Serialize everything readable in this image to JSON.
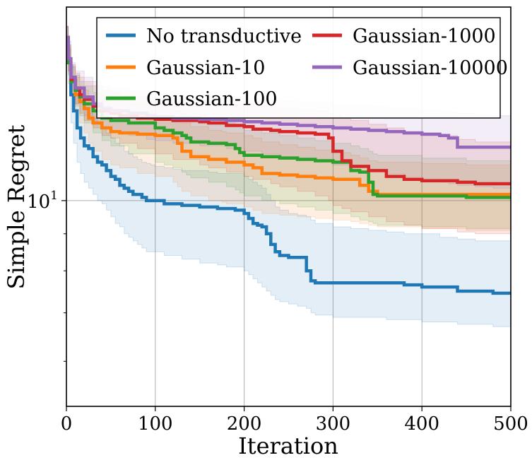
{
  "chart_data": {
    "type": "line",
    "title": "",
    "xlabel": "Iteration",
    "ylabel": "Simple Regret",
    "xlim": [
      0,
      500
    ],
    "ylim": [
      5.2,
      18.5
    ],
    "yscale": "log",
    "grid": true,
    "legend_position": "top-right",
    "legend_columns": 2,
    "xticks": [
      {
        "value": 0,
        "label": "0"
      },
      {
        "value": 100,
        "label": "100"
      },
      {
        "value": 200,
        "label": "200"
      },
      {
        "value": 300,
        "label": "300"
      },
      {
        "value": 400,
        "label": "400"
      },
      {
        "value": 500,
        "label": "500"
      }
    ],
    "ytick_major": [
      {
        "value": 10,
        "base": "10",
        "exp": "1"
      }
    ],
    "ytick_minor": [
      6,
      7,
      8,
      9
    ],
    "series": [
      {
        "name": "No transductive",
        "color": "#1f77b4",
        "x": [
          0,
          2,
          5,
          8,
          12,
          16,
          20,
          25,
          30,
          35,
          40,
          45,
          50,
          55,
          60,
          65,
          70,
          75,
          80,
          85,
          90,
          95,
          100,
          110,
          120,
          130,
          140,
          150,
          160,
          170,
          180,
          190,
          200,
          205,
          210,
          215,
          220,
          225,
          230,
          235,
          240,
          250,
          260,
          270,
          275,
          280,
          300,
          320,
          340,
          360,
          380,
          400,
          420,
          440,
          460,
          480,
          500
        ],
        "y": [
          16.8,
          15.5,
          14.0,
          13.3,
          12.6,
          12.2,
          11.9,
          11.8,
          11.5,
          11.3,
          11.2,
          11.0,
          10.8,
          10.7,
          10.5,
          10.4,
          10.3,
          10.2,
          10.2,
          10.1,
          10.0,
          10.0,
          10.0,
          9.9,
          9.9,
          9.85,
          9.85,
          9.8,
          9.8,
          9.75,
          9.75,
          9.7,
          9.6,
          9.45,
          9.3,
          9.25,
          9.2,
          9.0,
          8.7,
          8.5,
          8.4,
          8.35,
          8.35,
          8.0,
          7.75,
          7.7,
          7.7,
          7.7,
          7.7,
          7.7,
          7.65,
          7.6,
          7.6,
          7.5,
          7.5,
          7.45,
          7.45
        ],
        "band_lower": [
          16.2,
          14.5,
          12.8,
          12.0,
          11.3,
          10.9,
          10.6,
          10.4,
          10.2,
          10.0,
          9.9,
          9.7,
          9.5,
          9.3,
          9.2,
          9.0,
          8.9,
          8.8,
          8.7,
          8.6,
          8.5,
          8.5,
          8.5,
          8.4,
          8.4,
          8.3,
          8.3,
          8.2,
          8.2,
          8.15,
          8.1,
          8.1,
          8.0,
          7.9,
          7.8,
          7.7,
          7.6,
          7.5,
          7.4,
          7.3,
          7.25,
          7.2,
          7.15,
          7.1,
          7.0,
          6.95,
          6.9,
          6.9,
          6.9,
          6.85,
          6.85,
          6.8,
          6.8,
          6.75,
          6.75,
          6.7,
          6.7
        ],
        "band_upper": [
          17.4,
          16.6,
          15.4,
          14.7,
          14.0,
          13.7,
          13.4,
          13.2,
          13.0,
          12.8,
          12.6,
          12.4,
          12.2,
          12.0,
          11.9,
          11.7,
          11.6,
          11.5,
          11.4,
          11.3,
          11.25,
          11.2,
          11.15,
          11.1,
          11.05,
          11.0,
          11.0,
          11.0,
          10.95,
          10.9,
          10.9,
          10.9,
          10.8,
          10.7,
          10.6,
          10.5,
          10.4,
          10.2,
          10.0,
          9.8,
          9.7,
          9.6,
          9.55,
          9.5,
          9.4,
          9.3,
          9.2,
          9.15,
          9.1,
          9.05,
          9.0,
          9.0,
          8.9,
          8.85,
          8.8,
          8.8,
          8.75
        ]
      },
      {
        "name": "Gaussian-10",
        "color": "#ff7f0e",
        "x": [
          0,
          2,
          5,
          10,
          15,
          20,
          25,
          30,
          40,
          50,
          60,
          80,
          100,
          120,
          125,
          130,
          140,
          160,
          175,
          180,
          200,
          210,
          220,
          240,
          260,
          280,
          300,
          320,
          330,
          340,
          350,
          400,
          450,
          500
        ],
        "y": [
          16.8,
          15.6,
          14.6,
          14.0,
          13.7,
          13.4,
          13.0,
          12.8,
          12.6,
          12.45,
          12.4,
          12.35,
          12.3,
          12.2,
          12.0,
          11.7,
          11.5,
          11.4,
          11.4,
          11.3,
          11.2,
          11.1,
          10.9,
          10.85,
          10.8,
          10.75,
          10.7,
          10.7,
          10.5,
          10.3,
          10.2,
          10.2,
          10.2,
          10.2
        ],
        "band_lower": [
          16.2,
          15.0,
          14.0,
          13.3,
          12.8,
          12.4,
          12.0,
          11.7,
          11.4,
          11.2,
          11.1,
          10.9,
          10.8,
          10.6,
          10.45,
          10.3,
          10.15,
          10.0,
          9.95,
          9.9,
          9.8,
          9.7,
          9.6,
          9.55,
          9.5,
          9.45,
          9.4,
          9.35,
          9.3,
          9.25,
          9.2,
          9.15,
          9.1,
          9.05
        ],
        "band_upper": [
          17.4,
          16.3,
          15.3,
          14.8,
          14.4,
          14.2,
          13.9,
          13.7,
          13.5,
          13.4,
          13.3,
          13.2,
          13.1,
          13.0,
          12.9,
          12.8,
          12.65,
          12.5,
          12.45,
          12.4,
          12.3,
          12.2,
          12.05,
          11.95,
          11.85,
          11.75,
          11.65,
          11.55,
          11.45,
          11.35,
          11.3,
          11.25,
          11.2,
          11.15
        ]
      },
      {
        "name": "Gaussian-100",
        "color": "#2ca02c",
        "x": [
          0,
          2,
          5,
          10,
          15,
          20,
          30,
          40,
          50,
          70,
          100,
          110,
          120,
          130,
          135,
          140,
          160,
          180,
          190,
          195,
          200,
          220,
          240,
          260,
          280,
          300,
          320,
          330,
          340,
          345,
          350,
          400,
          450,
          500
        ],
        "y": [
          16.8,
          15.5,
          14.6,
          14.2,
          13.9,
          13.6,
          13.3,
          13.0,
          12.9,
          12.8,
          12.6,
          12.5,
          12.4,
          12.3,
          12.2,
          12.05,
          12.0,
          11.95,
          11.8,
          11.65,
          11.55,
          11.5,
          11.45,
          11.4,
          11.35,
          11.3,
          11.0,
          10.95,
          10.6,
          10.2,
          10.15,
          10.15,
          10.1,
          10.1
        ],
        "band_lower": [
          16.2,
          14.9,
          14.0,
          13.5,
          13.1,
          12.8,
          12.4,
          12.1,
          11.9,
          11.6,
          11.3,
          11.2,
          11.1,
          10.95,
          10.85,
          10.75,
          10.6,
          10.45,
          10.35,
          10.25,
          10.15,
          10.0,
          9.9,
          9.8,
          9.7,
          9.6,
          9.5,
          9.4,
          9.35,
          9.3,
          9.25,
          9.2,
          9.15,
          9.1
        ],
        "band_upper": [
          17.4,
          16.2,
          15.3,
          14.9,
          14.6,
          14.4,
          14.1,
          13.9,
          13.8,
          13.6,
          13.45,
          13.4,
          13.3,
          13.2,
          13.1,
          13.0,
          12.9,
          12.8,
          12.7,
          12.6,
          12.5,
          12.4,
          12.3,
          12.2,
          12.1,
          12.0,
          11.9,
          11.8,
          11.7,
          11.6,
          11.55,
          11.45,
          11.35,
          11.3
        ]
      },
      {
        "name": "Gaussian-1000",
        "color": "#d62728",
        "x": [
          0,
          2,
          5,
          10,
          15,
          20,
          30,
          40,
          50,
          60,
          80,
          100,
          120,
          150,
          160,
          180,
          200,
          210,
          230,
          240,
          260,
          280,
          295,
          300,
          310,
          320,
          340,
          360,
          380,
          400,
          440,
          460,
          500
        ],
        "y": [
          16.8,
          15.7,
          14.7,
          14.3,
          14.0,
          13.8,
          13.5,
          13.3,
          13.2,
          13.1,
          13.0,
          12.95,
          12.9,
          12.85,
          12.8,
          12.7,
          12.65,
          12.55,
          12.5,
          12.45,
          12.4,
          12.35,
          12.2,
          11.7,
          11.35,
          11.15,
          11.0,
          10.8,
          10.7,
          10.65,
          10.6,
          10.55,
          10.55
        ],
        "band_lower": [
          16.2,
          15.1,
          14.1,
          13.6,
          13.2,
          12.9,
          12.6,
          12.3,
          12.2,
          12.0,
          11.8,
          11.6,
          11.4,
          11.2,
          11.1,
          10.95,
          10.8,
          10.7,
          10.55,
          10.45,
          10.3,
          10.15,
          10.0,
          9.85,
          9.75,
          9.65,
          9.5,
          9.35,
          9.25,
          9.15,
          9.05,
          9.0,
          8.95
        ],
        "band_upper": [
          17.4,
          16.4,
          15.4,
          15.0,
          14.8,
          14.6,
          14.4,
          14.2,
          14.1,
          14.0,
          13.9,
          13.85,
          13.8,
          13.75,
          13.7,
          13.6,
          13.55,
          13.5,
          13.45,
          13.4,
          13.35,
          13.3,
          13.2,
          13.1,
          13.0,
          12.9,
          12.75,
          12.6,
          12.45,
          12.3,
          12.15,
          12.05,
          11.95
        ]
      },
      {
        "name": "Gaussian-10000",
        "color": "#9467bd",
        "x": [
          0,
          2,
          5,
          10,
          20,
          30,
          40,
          50,
          70,
          90,
          100,
          120,
          150,
          180,
          200,
          220,
          240,
          260,
          280,
          300,
          320,
          340,
          360,
          380,
          400,
          420,
          430,
          440,
          460,
          480,
          500
        ],
        "y": [
          16.8,
          15.7,
          14.8,
          14.3,
          13.9,
          13.6,
          13.4,
          13.3,
          13.2,
          13.1,
          13.05,
          13.0,
          12.95,
          12.9,
          12.85,
          12.8,
          12.75,
          12.7,
          12.65,
          12.6,
          12.55,
          12.5,
          12.45,
          12.4,
          12.35,
          12.3,
          12.2,
          11.85,
          11.85,
          11.85,
          11.85
        ],
        "band_lower": [
          16.2,
          15.1,
          14.2,
          13.6,
          13.1,
          12.8,
          12.6,
          12.45,
          12.3,
          12.15,
          12.1,
          12.0,
          11.9,
          11.8,
          11.7,
          11.6,
          11.5,
          11.4,
          11.3,
          11.2,
          11.1,
          11.0,
          10.9,
          10.8,
          10.7,
          10.6,
          10.55,
          10.5,
          10.45,
          10.4,
          10.35
        ],
        "band_upper": [
          17.4,
          16.4,
          15.5,
          15.1,
          14.8,
          14.6,
          14.4,
          14.3,
          14.2,
          14.1,
          14.05,
          14.0,
          13.95,
          13.9,
          13.85,
          13.8,
          13.75,
          13.7,
          13.65,
          13.6,
          13.55,
          13.5,
          13.45,
          13.4,
          13.35,
          13.3,
          13.25,
          13.2,
          13.15,
          13.1,
          13.05
        ]
      }
    ]
  }
}
